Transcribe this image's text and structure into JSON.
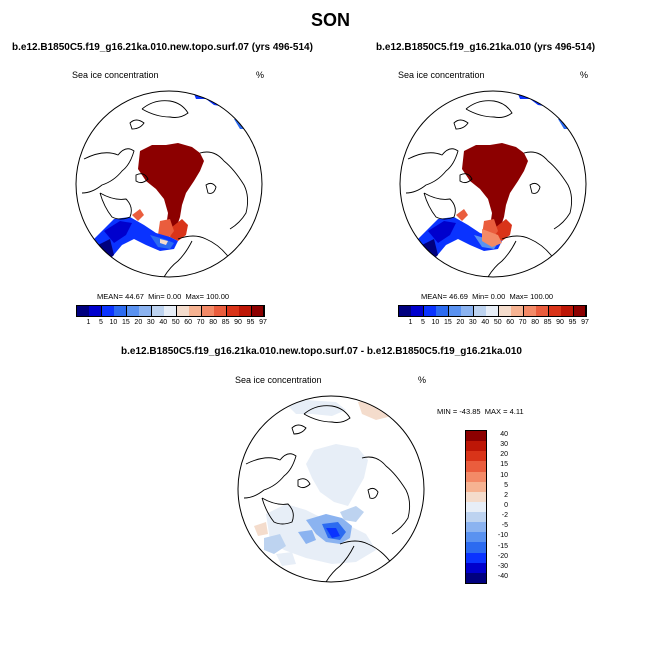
{
  "page_title": "SON",
  "colors": {
    "abs_scale": [
      "#00007f",
      "#0000cd",
      "#0a33ff",
      "#2c6bf0",
      "#5a92f0",
      "#8bb3f0",
      "#bdd3f0",
      "#e7eef7",
      "#f4dccc",
      "#f6b392",
      "#f38a67",
      "#ea5d3d",
      "#d93419",
      "#bd1606",
      "#8c0000"
    ],
    "diff_scale": [
      "#00007f",
      "#0000cd",
      "#0a33ff",
      "#2c6bf0",
      "#5a92f0",
      "#8bb3f0",
      "#bdd3f0",
      "#e7eef7",
      "#f4dccc",
      "#f6b392",
      "#f38a67",
      "#ea5d3d",
      "#d93419",
      "#bd1606",
      "#8c0000"
    ],
    "land_line": "#000000"
  },
  "chart_data": [
    {
      "type": "heatmap",
      "projection": "north polar stereographic",
      "title": "b.e12.B1850C5.f19_g16.21ka.010.new.topo.surf.07 (yrs 496-514)",
      "variable": "Sea ice concentration",
      "units": "%",
      "stats": {
        "mean_label": "MEAN=",
        "mean": "44.67",
        "min_label": "Min=",
        "min": "0.00",
        "max_label": "Max=",
        "max": "100.00"
      },
      "colorbar_levels": [
        "1",
        "5",
        "10",
        "15",
        "20",
        "30",
        "40",
        "50",
        "60",
        "70",
        "80",
        "85",
        "90",
        "95",
        "97"
      ]
    },
    {
      "type": "heatmap",
      "projection": "north polar stereographic",
      "title": "b.e12.B1850C5.f19_g16.21ka.010 (yrs 496-514)",
      "variable": "Sea ice concentration",
      "units": "%",
      "stats": {
        "mean_label": "MEAN=",
        "mean": "46.69",
        "min_label": "Min=",
        "min": "0.00",
        "max_label": "Max=",
        "max": "100.00"
      },
      "colorbar_levels": [
        "1",
        "5",
        "10",
        "15",
        "20",
        "30",
        "40",
        "50",
        "60",
        "70",
        "80",
        "85",
        "90",
        "95",
        "97"
      ]
    },
    {
      "type": "heatmap",
      "projection": "north polar stereographic",
      "title": "b.e12.B1850C5.f19_g16.21ka.010.new.topo.surf.07 - b.e12.B1850C5.f19_g16.21ka.010",
      "variable": "Sea ice concentration",
      "units": "%",
      "stats": {
        "min_label": "MIN =",
        "min": "-43.85",
        "max_label": "MAX =",
        "max": "4.11"
      },
      "colorbar_levels": [
        "40",
        "30",
        "20",
        "15",
        "10",
        "5",
        "2",
        "0",
        "-2",
        "-5",
        "-10",
        "-15",
        "-20",
        "-30",
        "-40"
      ]
    }
  ]
}
